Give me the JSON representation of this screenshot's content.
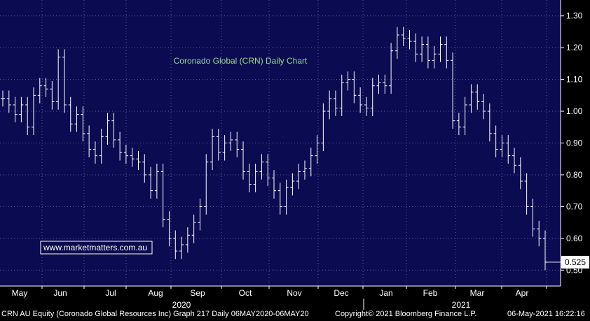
{
  "chart_data": {
    "type": "bar",
    "subtype": "ohlc",
    "title": "Coronado Global (CRN) Daily Chart",
    "watermark": "www.marketmatters.com.au",
    "last_price_label": "0.525",
    "ylim": [
      0.45,
      1.35
    ],
    "y_ticks": [
      "1.30",
      "1.20",
      "1.10",
      "1.00",
      "0.90",
      "0.80",
      "0.70",
      "0.60",
      "0.50"
    ],
    "y_tick_values": [
      1.3,
      1.2,
      1.1,
      1.0,
      0.9,
      0.8,
      0.7,
      0.6,
      0.5
    ],
    "month_labels": [
      "May",
      "Jun",
      "Jul",
      "Aug",
      "Sep",
      "Oct",
      "Nov",
      "Dec",
      "Jan",
      "Feb",
      "Mar",
      "Apr"
    ],
    "year_labels": [
      "2020",
      "2021"
    ],
    "grid": true,
    "series": [
      {
        "values": [
          1.04,
          1.02,
          0.99,
          1.02,
          0.95,
          1.05,
          1.08,
          1.07,
          1.03,
          1.17,
          1.02,
          0.96,
          0.99,
          0.93,
          0.88,
          0.86,
          0.92,
          0.97,
          0.91,
          0.87,
          0.86,
          0.85,
          0.84,
          0.8,
          0.75,
          0.81,
          0.66,
          0.6,
          0.56,
          0.58,
          0.61,
          0.65,
          0.7,
          0.84,
          0.92,
          0.87,
          0.9,
          0.91,
          0.88,
          0.81,
          0.77,
          0.81,
          0.84,
          0.79,
          0.75,
          0.7,
          0.76,
          0.78,
          0.81,
          0.82,
          0.86,
          0.9,
          1.0,
          1.04,
          1.01,
          1.09,
          1.1,
          1.05,
          1.02,
          1.01,
          1.08,
          1.09,
          1.08,
          1.19,
          1.24,
          1.23,
          1.22,
          1.18,
          1.21,
          1.16,
          1.18,
          1.21,
          1.16,
          0.97,
          0.95,
          1.02,
          1.06,
          1.03,
          1.0,
          0.93,
          0.88,
          0.9,
          0.86,
          0.83,
          0.78,
          0.7,
          0.63,
          0.6,
          0.525
        ]
      }
    ]
  },
  "footer": {
    "left": "CRN AU Equity (Coronado Global Resources Inc) Graph 217  Daily 06MAY2020-06MAY20",
    "center": "Copyright© 2021 Bloomberg Finance L.P.",
    "right": "06-May-2021 16:22:16"
  }
}
